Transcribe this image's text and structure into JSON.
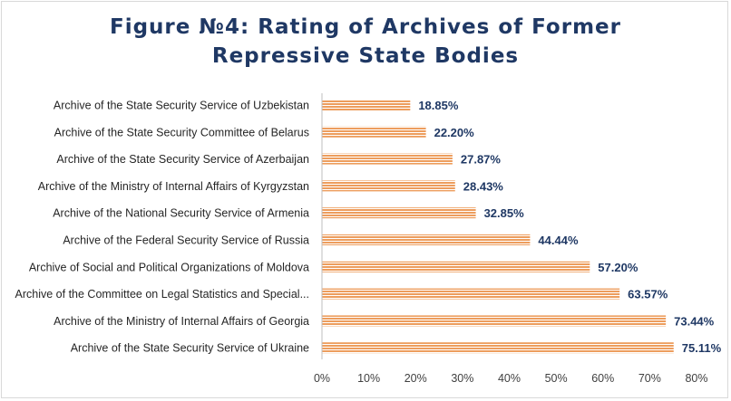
{
  "title_line1": "Figure №4: Rating of Archives of Former",
  "title_line2": "Repressive State Bodies",
  "colors": {
    "bar": "#ED9D5D",
    "bar_stripe": "#ffffff",
    "title": "#1f3864",
    "axis": "#bfbfbf"
  },
  "chart_data": {
    "type": "bar",
    "orientation": "horizontal",
    "title": "Figure №4: Rating of Archives of Former Repressive State Bodies",
    "categories": [
      "Archive of the State Security Service of Uzbekistan",
      "Archive of the State Security Committee of Belarus",
      "Archive of the State Security Service of Azerbaijan",
      "Archive of the Ministry of Internal Affairs of Kyrgyzstan",
      "Archive of the National Security Service of Armenia",
      "Archive of the Federal Security Service of Russia",
      "Archive of Social and Political Organizations of Moldova",
      "Archive of the Committee on Legal Statistics and Special...",
      "Archive of the Ministry of Internal Affairs of Georgia",
      "Archive of the State Security Service of Ukraine"
    ],
    "values": [
      18.85,
      22.2,
      27.87,
      28.43,
      32.85,
      44.44,
      57.2,
      63.57,
      73.44,
      75.11
    ],
    "data_labels": [
      "18.85%",
      "22.20%",
      "27.87%",
      "28.43%",
      "32.85%",
      "44.44%",
      "57.20%",
      "63.57%",
      "73.44%",
      "75.11%"
    ],
    "x_ticks": [
      "0%",
      "10%",
      "20%",
      "30%",
      "40%",
      "50%",
      "60%",
      "70%",
      "80%"
    ],
    "xlim": [
      0,
      80
    ],
    "grid": false,
    "legend": "none"
  }
}
